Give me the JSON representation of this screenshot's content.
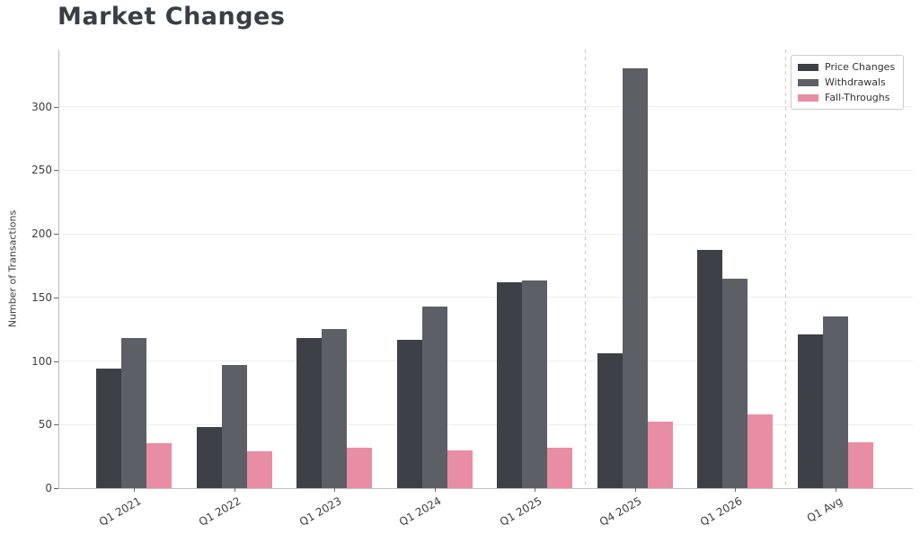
{
  "title": "Market Changes",
  "chart_data": {
    "type": "bar",
    "title": "Market Changes",
    "ylabel": "Number of Transactions",
    "xlabel": "",
    "categories": [
      "Q1 2021",
      "Q1 2022",
      "Q1 2023",
      "Q1 2024",
      "Q1 2025",
      "Q4 2025",
      "Q1 2026",
      "Q1 Avg"
    ],
    "series": [
      {
        "name": "Price Changes",
        "color": "#3d4047",
        "values": [
          94,
          48,
          118,
          117,
          162,
          106,
          187,
          121
        ]
      },
      {
        "name": "Withdrawals",
        "color": "#5c5f66",
        "values": [
          118,
          97,
          125,
          143,
          163,
          330,
          165,
          135
        ]
      },
      {
        "name": "Fall-Throughs",
        "color": "#e98da4",
        "values": [
          35,
          29,
          32,
          30,
          32,
          52,
          58,
          36
        ]
      }
    ],
    "yticks": [
      0,
      50,
      100,
      150,
      200,
      250,
      300
    ],
    "ylim": [
      0,
      345
    ],
    "grid": "horizontal-light",
    "legend_position": "upper-right",
    "xtick_rotation_deg": 30,
    "separators_between_category_indices": [
      [
        4,
        5
      ],
      [
        6,
        7
      ]
    ]
  },
  "colors": {
    "background": "#ffffff",
    "title_text": "#3a3e45",
    "axis_text": "#3d3d3d",
    "spine": "#bdbdbd",
    "gridline": "#ededed",
    "separator_dashed": "#c9c9c9",
    "legend_border": "#cccccc"
  }
}
